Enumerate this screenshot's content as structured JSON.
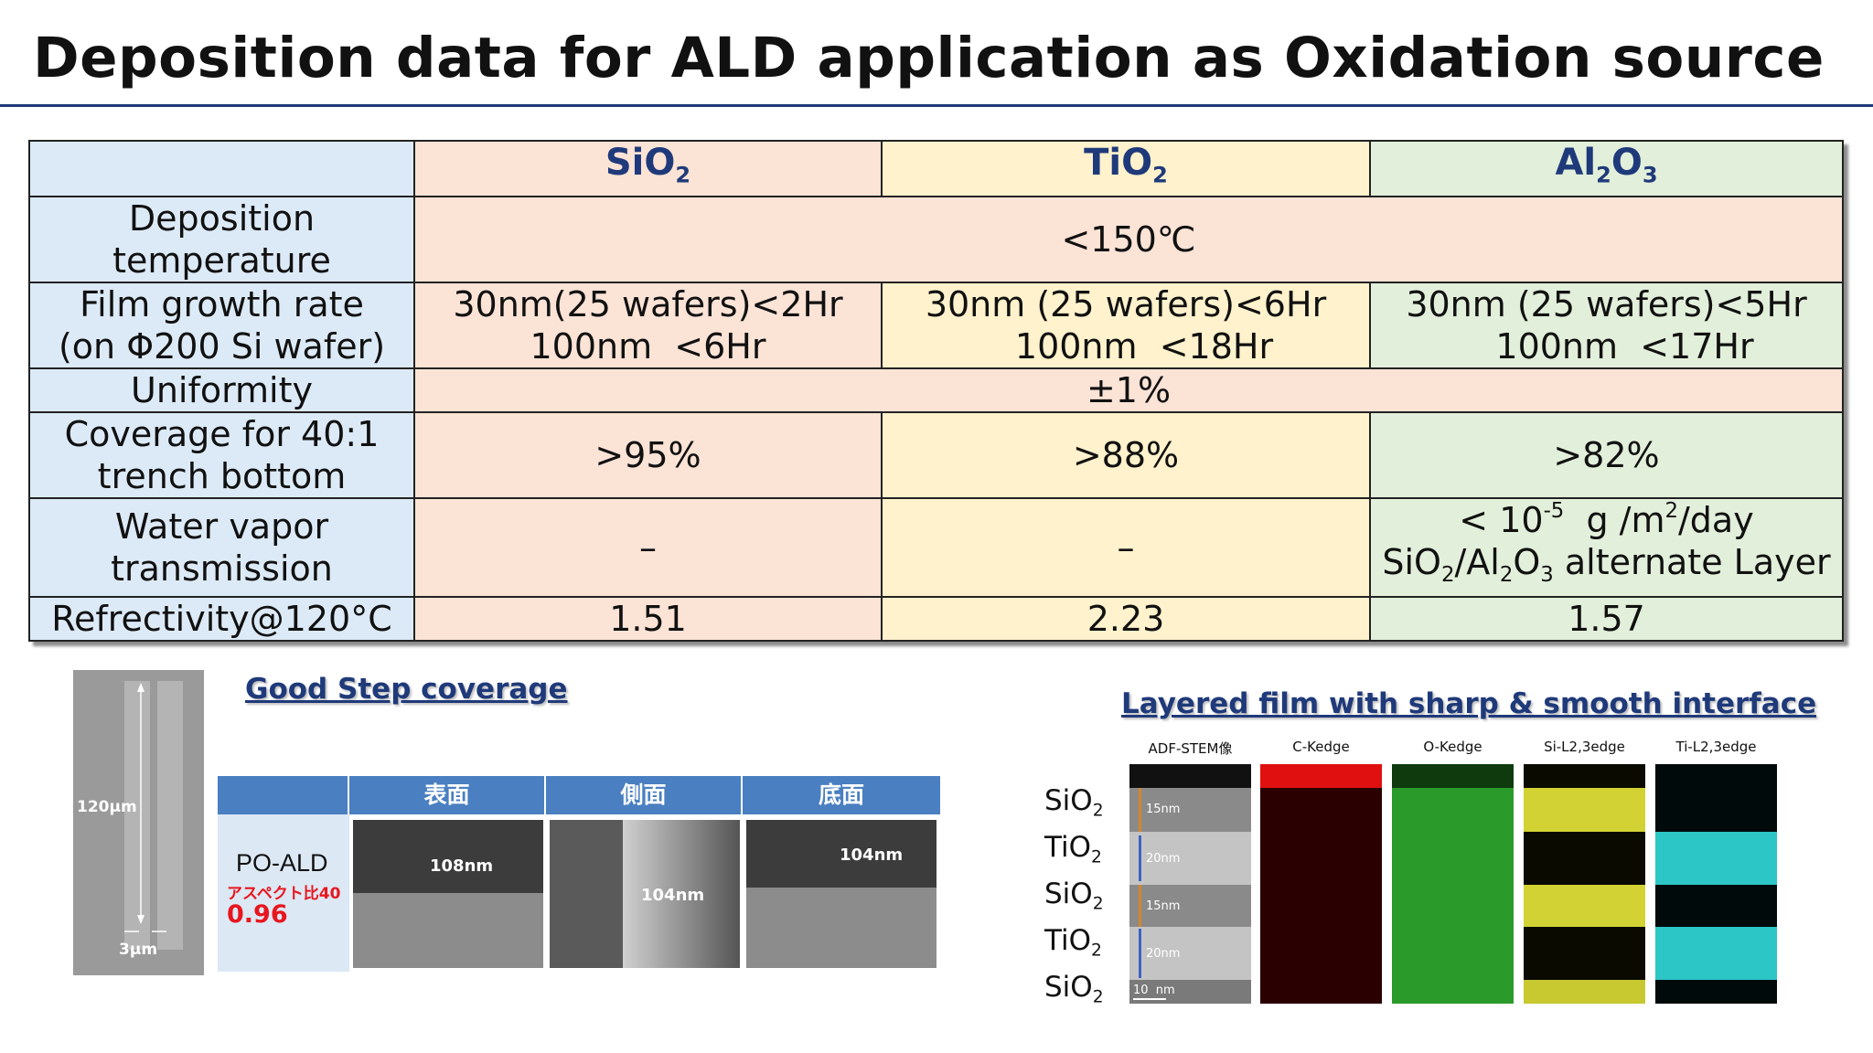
{
  "title": "Deposition data for  ALD application as Oxidation source",
  "table": {
    "headers": {
      "sio2": {
        "base": "SiO",
        "sub": "2"
      },
      "tio2": {
        "base": "TiO",
        "sub": "2"
      },
      "al2o3": {
        "a": "Al",
        "a_sub": "2",
        "b": "O",
        "b_sub": "3"
      }
    },
    "rows": {
      "temp": {
        "label_1": "Deposition",
        "label_2": "temperature",
        "value": "<150℃"
      },
      "growth": {
        "label_1": "Film growth rate",
        "label_2": "(on Φ200 Si wafer)",
        "sio2_1": "30nm(25 wafers)<2Hr",
        "sio2_2": "100nm  <6Hr",
        "tio2_1": "30nm (25 wafers)<6Hr",
        "tio2_2": "100nm  <18Hr",
        "al2o3_1": "30nm (25 wafers)<5Hr",
        "al2o3_2": "100nm  <17Hr"
      },
      "uniformity": {
        "label": "Uniformity",
        "value": "±1%"
      },
      "coverage": {
        "label_1": "Coverage for 40:1",
        "label_2": "trench bottom",
        "sio2": ">95%",
        "tio2": ">88%",
        "al2o3": ">82%"
      },
      "wvtr": {
        "label_1": "Water vapor",
        "label_2": "transmission",
        "sio2": "–",
        "tio2": "–",
        "al2o3_pre": "< 10",
        "al2o3_exp": "-5",
        "al2o3_mid": "  g /m",
        "al2o3_exp2": "2",
        "al2o3_post": "/day",
        "al2o3_line2": {
          "a": "SiO",
          "a_sub": "2",
          "b": "/Al",
          "b_sub": "2",
          "c": "O",
          "c_sub": "3",
          "d": " alternate Layer"
        }
      },
      "refractivity": {
        "label": "Refrectivity@120°C",
        "sio2": "1.51",
        "tio2": "2.23",
        "al2o3": "1.57"
      }
    }
  },
  "step_coverage": {
    "heading": "Good Step coverage",
    "trench_depth": "120μm",
    "trench_width": "3μm",
    "columns": [
      "表面",
      "側面",
      "底面"
    ],
    "process": "PO-ALD",
    "aspect_label": "アスペクト比40",
    "ratio": "0.96",
    "surface_thk": "108nm",
    "side_thk": "104nm",
    "bottom_thk": "104nm"
  },
  "layered": {
    "heading": "Layered film with sharp & smooth interface",
    "layers": [
      {
        "base": "SiO",
        "sub": "2"
      },
      {
        "base": "TiO",
        "sub": "2"
      },
      {
        "base": "SiO",
        "sub": "2"
      },
      {
        "base": "TiO",
        "sub": "2"
      },
      {
        "base": "SiO",
        "sub": "2"
      }
    ],
    "columns": [
      "ADF-STEM像",
      "C-Kedge",
      "O-Kedge",
      "Si-L2,3edge",
      "Ti-L2,3edge"
    ],
    "stem_notes": [
      "15nm",
      "20nm",
      "15nm",
      "20nm"
    ],
    "scale": "10  nm"
  },
  "colors": {
    "title_rule": "#1f3a7a",
    "header_text": "#1f3a7a",
    "sio2_bg": "#fbe3d6",
    "tio2_bg": "#fff2cc",
    "al2o3_bg": "#e2efda",
    "label_bg": "#dceaf7"
  }
}
